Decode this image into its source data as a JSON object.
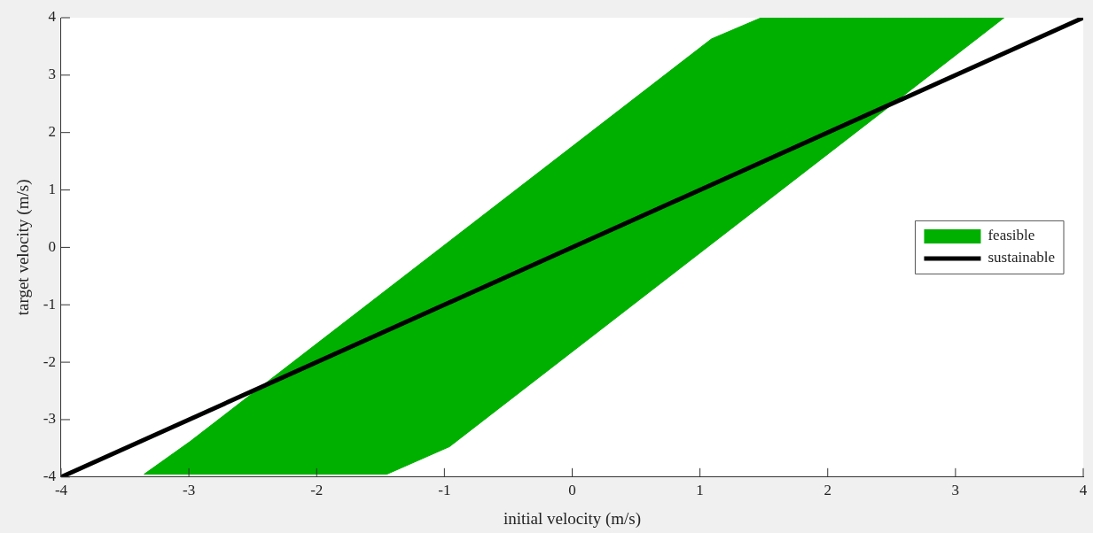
{
  "chart_data": {
    "type": "area",
    "xlabel": "initial velocity (m/s)",
    "ylabel": "target velocity (m/s)",
    "xlim": [
      -4,
      4
    ],
    "xticks": [
      -4,
      -3,
      -2,
      -1,
      0,
      1,
      2,
      3,
      4
    ],
    "ylim": [
      -4,
      4
    ],
    "yticks": [
      -4,
      -3,
      -2,
      -1,
      0,
      1,
      2,
      3,
      4
    ],
    "legend": "right",
    "grid": false,
    "series": [
      {
        "name": "feasible",
        "type": "area",
        "color": "#00b000",
        "x": [
          -3.35,
          -2.99,
          1.09,
          1.48,
          3.38,
          3.3,
          -0.96,
          -1.45,
          -3.35
        ],
        "values": [
          -3.95,
          -3.38,
          3.63,
          4,
          4,
          3.86,
          -3.47,
          -3.95,
          -3.95
        ]
      },
      {
        "name": "sustainable",
        "type": "line",
        "color": "#000000",
        "x": [
          -4,
          4
        ],
        "values": [
          -4,
          4
        ],
        "line_style": "solid"
      }
    ]
  }
}
